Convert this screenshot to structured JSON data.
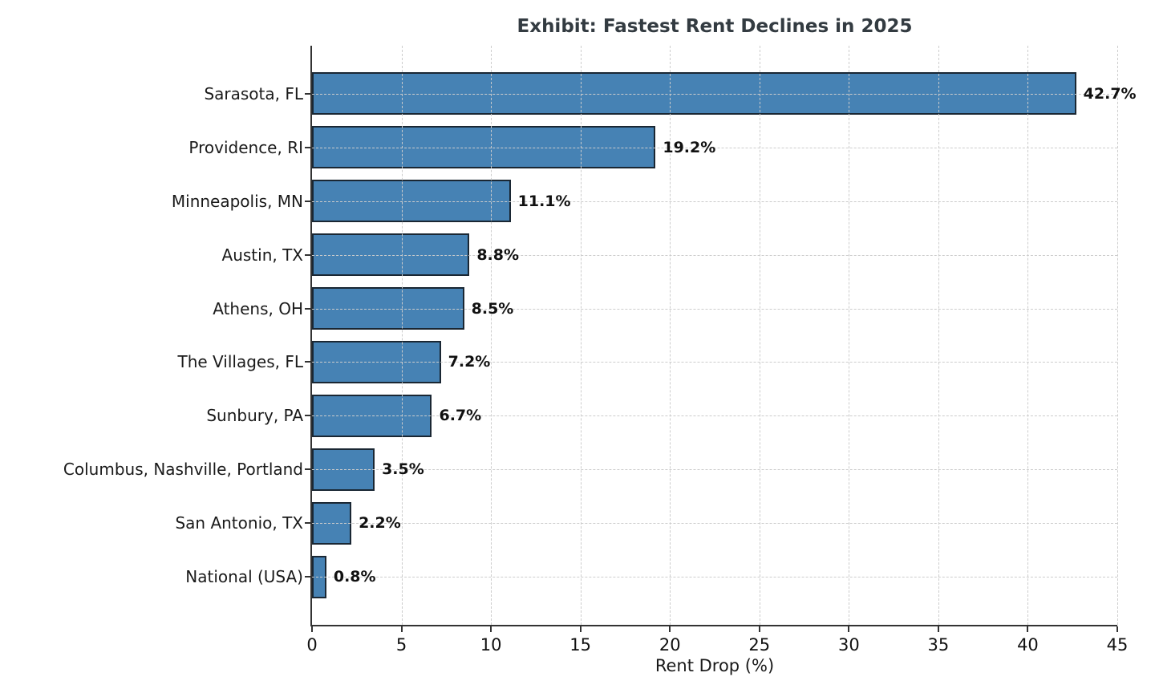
{
  "chart_data": {
    "type": "bar",
    "orientation": "horizontal",
    "title": "Exhibit: Fastest Rent Declines in 2025",
    "xlabel": "Rent Drop (%)",
    "categories": [
      "Sarasota, FL",
      "Providence, RI",
      "Minneapolis, MN",
      "Austin, TX",
      "Athens, OH",
      "The Villages, FL",
      "Sunbury, PA",
      "Columbus, Nashville, Portland",
      "San Antonio, TX",
      "National (USA)"
    ],
    "values": [
      42.7,
      19.2,
      11.1,
      8.8,
      8.5,
      7.2,
      6.7,
      3.5,
      2.2,
      0.8
    ],
    "value_labels": [
      "42.7%",
      "19.2%",
      "11.1%",
      "8.8%",
      "8.5%",
      "7.2%",
      "6.7%",
      "3.5%",
      "2.2%",
      "0.8%"
    ],
    "xlim": [
      0,
      45
    ],
    "xticks": [
      0,
      5,
      10,
      15,
      20,
      25,
      30,
      35,
      40,
      45
    ],
    "grid": "dashed, both axes, drawn over bars",
    "legend": "none",
    "colors": {
      "bar_fill": "#4682b4",
      "bar_edge": "#1a2733",
      "grid": "#cccccc",
      "spine": "#333333",
      "title_text": "#333b41",
      "label_text": "#1a1a1a",
      "value_text": "#111111",
      "background": "#ffffff"
    }
  }
}
